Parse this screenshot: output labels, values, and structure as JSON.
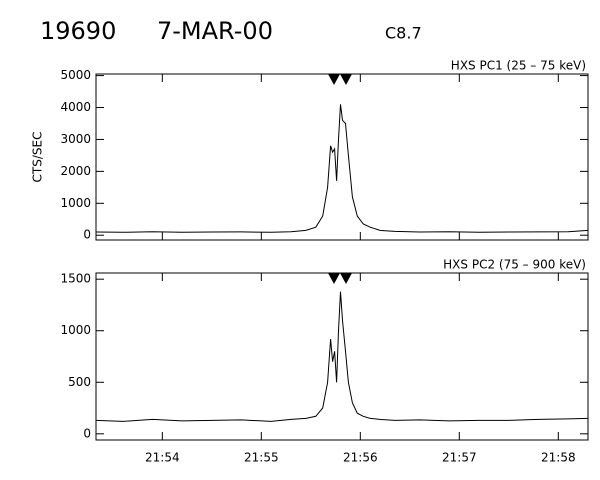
{
  "header": {
    "event": "19690",
    "date": "7-MAR-00",
    "class": "C8.7"
  },
  "chart_data": [
    {
      "type": "line",
      "title": "HXS PC1 (25 – 75 keV)",
      "ylabel": "CTS/SEC",
      "color": "#000000",
      "x": [
        53.33,
        53.6,
        53.9,
        54.2,
        54.5,
        54.8,
        55.1,
        55.3,
        55.45,
        55.55,
        55.62,
        55.67,
        55.7,
        55.72,
        55.74,
        55.76,
        55.78,
        55.8,
        55.82,
        55.85,
        55.88,
        55.92,
        55.97,
        56.03,
        56.1,
        56.2,
        56.35,
        56.6,
        56.9,
        57.2,
        57.5,
        57.8,
        58.1,
        58.3
      ],
      "values": [
        100,
        90,
        110,
        95,
        100,
        105,
        90,
        110,
        150,
        250,
        600,
        1500,
        2800,
        2600,
        2700,
        1700,
        3000,
        4100,
        3600,
        3500,
        2500,
        1200,
        600,
        350,
        250,
        150,
        120,
        100,
        110,
        95,
        100,
        105,
        110,
        150
      ],
      "xlim": [
        53.33,
        58.3
      ],
      "ylim": [
        -150,
        5050
      ],
      "yticks": [
        0,
        1000,
        2000,
        3000,
        4000,
        5000
      ]
    },
    {
      "type": "line",
      "title": "HXS PC2 (75 – 900 keV)",
      "color": "#000000",
      "x": [
        53.33,
        53.6,
        53.9,
        54.2,
        54.5,
        54.8,
        55.1,
        55.3,
        55.45,
        55.55,
        55.62,
        55.67,
        55.7,
        55.72,
        55.74,
        55.76,
        55.78,
        55.8,
        55.82,
        55.85,
        55.88,
        55.92,
        55.97,
        56.03,
        56.1,
        56.2,
        56.35,
        56.6,
        56.9,
        57.2,
        57.5,
        57.8,
        58.1,
        58.3
      ],
      "values": [
        130,
        120,
        140,
        125,
        130,
        135,
        120,
        140,
        150,
        170,
        250,
        500,
        920,
        700,
        800,
        500,
        1000,
        1380,
        1100,
        800,
        500,
        300,
        200,
        170,
        150,
        140,
        130,
        135,
        125,
        130,
        130,
        140,
        145,
        150
      ],
      "xlim": [
        53.33,
        58.3
      ],
      "ylim": [
        -60,
        1560
      ],
      "yticks": [
        0,
        500,
        1000,
        1500
      ],
      "xticks": [
        {
          "value": 54,
          "label": "21:54"
        },
        {
          "value": 55,
          "label": "21:55"
        },
        {
          "value": 56,
          "label": "21:56"
        },
        {
          "value": 57,
          "label": "21:57"
        },
        {
          "value": 58,
          "label": "21:58"
        }
      ]
    }
  ]
}
